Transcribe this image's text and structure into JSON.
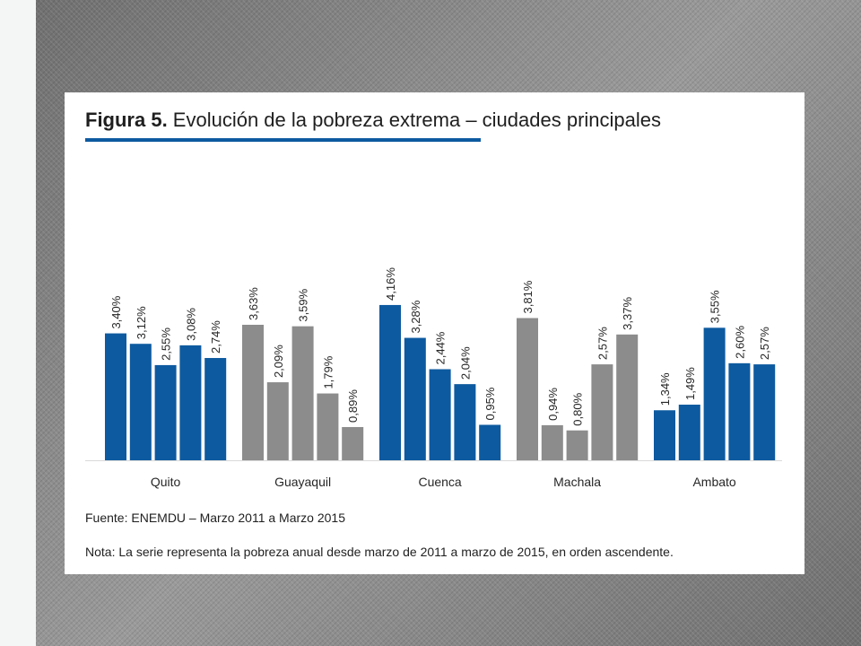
{
  "figure": {
    "title_bold": "Figura 5.",
    "title_rest": " Evolución de la pobreza extrema – ciudades principales",
    "source": "Fuente: ENEMDU – Marzo 2011 a Marzo 2015",
    "note": "Nota: La serie representa la pobreza anual desde marzo de 2011 a marzo de 2015, en orden ascendente."
  },
  "colors": {
    "blue": "#0d5aa0",
    "gray": "#8c8c8c",
    "underline": "#0d5aa0"
  },
  "chart_data": {
    "type": "bar",
    "title": "Figura 5. Evolución de la pobreza extrema – ciudades principales",
    "categories": [
      "Quito",
      "Guayaquil",
      "Cuenca",
      "Machala",
      "Ambato"
    ],
    "bar_colors": [
      "blue",
      "gray",
      "blue",
      "gray",
      "blue"
    ],
    "values": [
      [
        3.4,
        3.12,
        2.55,
        3.08,
        2.74
      ],
      [
        3.63,
        2.09,
        3.59,
        1.79,
        0.89
      ],
      [
        4.16,
        3.28,
        2.44,
        2.04,
        0.95
      ],
      [
        3.81,
        0.94,
        0.8,
        2.57,
        3.37
      ],
      [
        1.34,
        1.49,
        3.55,
        2.6,
        2.57
      ]
    ],
    "data_labels": [
      [
        "3,40%",
        "3,12%",
        "2,55%",
        "3,08%",
        "2,74%"
      ],
      [
        "3,63%",
        "2,09%",
        "3,59%",
        "1,79%",
        "0,89%"
      ],
      [
        "4,16%",
        "3,28%",
        "2,44%",
        "2,04%",
        "0,95%"
      ],
      [
        "3,81%",
        "0,94%",
        "0,80%",
        "2,57%",
        "3,37%"
      ],
      [
        "1,34%",
        "1,49%",
        "3,55%",
        "2,60%",
        "2,57%"
      ]
    ],
    "xlabel": "",
    "ylabel": "",
    "ylim": [
      0,
      4.5
    ],
    "grid": false,
    "legend": "none",
    "y_axis_visible": false
  }
}
